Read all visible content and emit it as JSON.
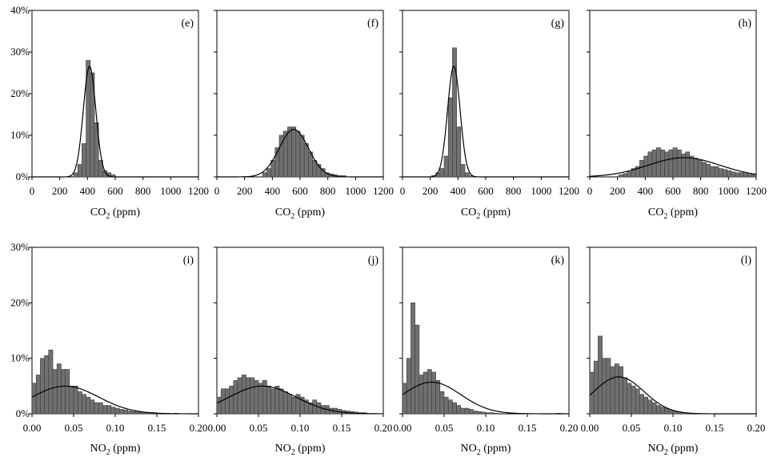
{
  "colors": {
    "bar_fill": "#707070",
    "bar_stroke": "#3a3a3a",
    "axis": "#000000",
    "curve": "#000000"
  },
  "chart_data": [
    {
      "type": "bar",
      "panel": "(e)",
      "xlabel_main": "CO",
      "xlabel_sub": "2",
      "xlabel_unit": " (ppm)",
      "xlim": [
        0,
        1200
      ],
      "ylim": [
        0,
        0.4
      ],
      "xticks": [
        "0",
        "200",
        "400",
        "600",
        "800",
        "1000",
        "1200"
      ],
      "yticks": [
        "0%",
        "10%",
        "20%",
        "30%",
        "40%"
      ],
      "bin_width": 30,
      "bins": [
        [
          300,
          0.01
        ],
        [
          330,
          0.03
        ],
        [
          360,
          0.08
        ],
        [
          390,
          0.28
        ],
        [
          420,
          0.25
        ],
        [
          450,
          0.13
        ],
        [
          480,
          0.04
        ],
        [
          510,
          0.015
        ],
        [
          540,
          0.01
        ],
        [
          570,
          0.005
        ]
      ],
      "fit": {
        "mean": 415,
        "sd": 45
      }
    },
    {
      "type": "bar",
      "panel": "(f)",
      "xlabel_main": "CO",
      "xlabel_sub": "2",
      "xlabel_unit": " (ppm)",
      "xlim": [
        0,
        1200
      ],
      "ylim": [
        0,
        0.4
      ],
      "xticks": [
        "0",
        "200",
        "400",
        "600",
        "800",
        "1000",
        "1200"
      ],
      "yticks": [
        "0%",
        "10%",
        "20%",
        "30%",
        "40%"
      ],
      "bin_width": 30,
      "bins": [
        [
          330,
          0.01
        ],
        [
          360,
          0.02
        ],
        [
          390,
          0.04
        ],
        [
          420,
          0.07
        ],
        [
          450,
          0.1
        ],
        [
          480,
          0.11
        ],
        [
          510,
          0.12
        ],
        [
          540,
          0.12
        ],
        [
          570,
          0.11
        ],
        [
          600,
          0.1
        ],
        [
          630,
          0.08
        ],
        [
          660,
          0.06
        ],
        [
          690,
          0.04
        ],
        [
          720,
          0.03
        ],
        [
          750,
          0.02
        ],
        [
          780,
          0.01
        ],
        [
          810,
          0.007
        ],
        [
          840,
          0.005
        ],
        [
          870,
          0.003
        ],
        [
          900,
          0.003
        ]
      ],
      "fit": {
        "mean": 555,
        "sd": 105
      }
    },
    {
      "type": "bar",
      "panel": "(g)",
      "xlabel_main": "CO",
      "xlabel_sub": "2",
      "xlabel_unit": " (ppm)",
      "xlim": [
        0,
        1200
      ],
      "ylim": [
        0,
        0.4
      ],
      "xticks": [
        "0",
        "200",
        "400",
        "600",
        "800",
        "1000",
        "1200"
      ],
      "yticks": [
        "0%",
        "10%",
        "20%",
        "30%",
        "40%"
      ],
      "bin_width": 30,
      "bins": [
        [
          210,
          0.003
        ],
        [
          240,
          0.01
        ],
        [
          270,
          0.02
        ],
        [
          300,
          0.05
        ],
        [
          330,
          0.19
        ],
        [
          360,
          0.31
        ],
        [
          390,
          0.12
        ],
        [
          420,
          0.03
        ],
        [
          450,
          0.01
        ],
        [
          480,
          0.003
        ]
      ],
      "fit": {
        "mean": 370,
        "sd": 45
      }
    },
    {
      "type": "bar",
      "panel": "(h)",
      "xlabel_main": "CO",
      "xlabel_sub": "2",
      "xlabel_unit": " (ppm)",
      "xlim": [
        0,
        1200
      ],
      "ylim": [
        0,
        0.4
      ],
      "xticks": [
        "0",
        "200",
        "400",
        "600",
        "800",
        "1000",
        "1200"
      ],
      "yticks": [
        "0%",
        "10%",
        "20%",
        "30%",
        "40%"
      ],
      "bin_width": 30,
      "bins": [
        [
          210,
          0.005
        ],
        [
          240,
          0.008
        ],
        [
          270,
          0.012
        ],
        [
          300,
          0.02
        ],
        [
          330,
          0.025
        ],
        [
          360,
          0.04
        ],
        [
          390,
          0.05
        ],
        [
          420,
          0.06
        ],
        [
          450,
          0.065
        ],
        [
          480,
          0.07
        ],
        [
          510,
          0.065
        ],
        [
          540,
          0.06
        ],
        [
          570,
          0.065
        ],
        [
          600,
          0.07
        ],
        [
          630,
          0.065
        ],
        [
          660,
          0.055
        ],
        [
          690,
          0.06
        ],
        [
          720,
          0.05
        ],
        [
          750,
          0.045
        ],
        [
          780,
          0.04
        ],
        [
          810,
          0.035
        ],
        [
          840,
          0.03
        ],
        [
          870,
          0.025
        ],
        [
          900,
          0.025
        ],
        [
          930,
          0.02
        ],
        [
          960,
          0.018
        ],
        [
          990,
          0.015
        ],
        [
          1020,
          0.012
        ],
        [
          1050,
          0.01
        ],
        [
          1080,
          0.01
        ],
        [
          1110,
          0.008
        ],
        [
          1140,
          0.006
        ],
        [
          1170,
          0.005
        ]
      ],
      "fit": {
        "mean": 680,
        "sd": 260
      }
    },
    {
      "type": "bar",
      "panel": "(i)",
      "xlabel_main": "NO",
      "xlabel_sub": "2",
      "xlabel_unit": " (ppm)",
      "xlim": [
        0,
        0.2
      ],
      "ylim": [
        0,
        0.3
      ],
      "xticks": [
        "0.00",
        "0.05",
        "0.10",
        "0.15",
        "0.20"
      ],
      "yticks": [
        "0%",
        "10%",
        "20%",
        "30%"
      ],
      "bin_width": 0.005,
      "bins": [
        [
          0.0,
          0.055
        ],
        [
          0.005,
          0.07
        ],
        [
          0.01,
          0.1
        ],
        [
          0.015,
          0.105
        ],
        [
          0.02,
          0.115
        ],
        [
          0.025,
          0.08
        ],
        [
          0.03,
          0.09
        ],
        [
          0.035,
          0.08
        ],
        [
          0.04,
          0.08
        ],
        [
          0.045,
          0.05
        ],
        [
          0.05,
          0.05
        ],
        [
          0.055,
          0.04
        ],
        [
          0.06,
          0.035
        ],
        [
          0.065,
          0.03
        ],
        [
          0.07,
          0.025
        ],
        [
          0.075,
          0.02
        ],
        [
          0.08,
          0.02
        ],
        [
          0.085,
          0.015
        ],
        [
          0.09,
          0.015
        ],
        [
          0.095,
          0.012
        ],
        [
          0.1,
          0.01
        ],
        [
          0.105,
          0.008
        ],
        [
          0.11,
          0.007
        ],
        [
          0.115,
          0.005
        ],
        [
          0.12,
          0.004
        ],
        [
          0.125,
          0.003
        ],
        [
          0.13,
          0.003
        ],
        [
          0.135,
          0.002
        ],
        [
          0.14,
          0.002
        ],
        [
          0.145,
          0.002
        ],
        [
          0.15,
          0.001
        ],
        [
          0.16,
          0.001
        ],
        [
          0.17,
          0.001
        ]
      ],
      "fit": {
        "mean": 0.04,
        "sd": 0.04
      }
    },
    {
      "type": "bar",
      "panel": "(j)",
      "xlabel_main": "NO",
      "xlabel_sub": "2",
      "xlabel_unit": " (ppm)",
      "xlim": [
        0,
        0.2
      ],
      "ylim": [
        0,
        0.3
      ],
      "xticks": [
        "0.00",
        "0.05",
        "0.10",
        "0.15",
        "0.20"
      ],
      "yticks": [
        "0%",
        "10%",
        "20%",
        "30%"
      ],
      "bin_width": 0.005,
      "bins": [
        [
          0.0,
          0.03
        ],
        [
          0.005,
          0.045
        ],
        [
          0.01,
          0.045
        ],
        [
          0.015,
          0.05
        ],
        [
          0.02,
          0.06
        ],
        [
          0.025,
          0.065
        ],
        [
          0.03,
          0.07
        ],
        [
          0.035,
          0.065
        ],
        [
          0.04,
          0.065
        ],
        [
          0.045,
          0.06
        ],
        [
          0.05,
          0.055
        ],
        [
          0.055,
          0.06
        ],
        [
          0.06,
          0.05
        ],
        [
          0.065,
          0.045
        ],
        [
          0.07,
          0.05
        ],
        [
          0.075,
          0.045
        ],
        [
          0.08,
          0.04
        ],
        [
          0.085,
          0.035
        ],
        [
          0.09,
          0.03
        ],
        [
          0.095,
          0.035
        ],
        [
          0.1,
          0.03
        ],
        [
          0.105,
          0.025
        ],
        [
          0.11,
          0.02
        ],
        [
          0.115,
          0.025
        ],
        [
          0.12,
          0.02
        ],
        [
          0.125,
          0.015
        ],
        [
          0.13,
          0.015
        ],
        [
          0.135,
          0.01
        ],
        [
          0.14,
          0.01
        ],
        [
          0.145,
          0.008
        ],
        [
          0.15,
          0.006
        ],
        [
          0.155,
          0.005
        ],
        [
          0.16,
          0.004
        ],
        [
          0.165,
          0.003
        ],
        [
          0.17,
          0.002
        ],
        [
          0.175,
          0.002
        ]
      ],
      "fit": {
        "mean": 0.055,
        "sd": 0.04
      }
    },
    {
      "type": "bar",
      "panel": "(k)",
      "xlabel_main": "NO",
      "xlabel_sub": "2",
      "xlabel_unit": " (ppm)",
      "xlim": [
        0,
        0.2
      ],
      "ylim": [
        0,
        0.3
      ],
      "xticks": [
        "0.00",
        "0.05",
        "0.10",
        "0.15",
        "0.20"
      ],
      "yticks": [
        "0%",
        "10%",
        "20%",
        "30%"
      ],
      "bin_width": 0.005,
      "bins": [
        [
          0.0,
          0.055
        ],
        [
          0.005,
          0.1
        ],
        [
          0.01,
          0.2
        ],
        [
          0.015,
          0.16
        ],
        [
          0.02,
          0.07
        ],
        [
          0.025,
          0.075
        ],
        [
          0.03,
          0.08
        ],
        [
          0.035,
          0.075
        ],
        [
          0.04,
          0.06
        ],
        [
          0.045,
          0.04
        ],
        [
          0.05,
          0.03
        ],
        [
          0.055,
          0.025
        ],
        [
          0.06,
          0.02
        ],
        [
          0.065,
          0.015
        ],
        [
          0.07,
          0.01
        ],
        [
          0.075,
          0.01
        ],
        [
          0.08,
          0.008
        ],
        [
          0.085,
          0.005
        ],
        [
          0.09,
          0.004
        ],
        [
          0.095,
          0.003
        ],
        [
          0.1,
          0.002
        ],
        [
          0.105,
          0.002
        ],
        [
          0.11,
          0.001
        ],
        [
          0.185,
          0.001
        ]
      ],
      "fit": {
        "mean": 0.035,
        "sd": 0.035
      }
    },
    {
      "type": "bar",
      "panel": "(l)",
      "xlabel_main": "NO",
      "xlabel_sub": "2",
      "xlabel_unit": " (ppm)",
      "xlim": [
        0,
        0.2
      ],
      "ylim": [
        0,
        0.3
      ],
      "xticks": [
        "0.00",
        "0.05",
        "0.10",
        "0.15",
        "0.20"
      ],
      "yticks": [
        "0%",
        "10%",
        "20%",
        "30%"
      ],
      "bin_width": 0.005,
      "bins": [
        [
          0.0,
          0.075
        ],
        [
          0.005,
          0.095
        ],
        [
          0.01,
          0.14
        ],
        [
          0.015,
          0.1
        ],
        [
          0.02,
          0.1
        ],
        [
          0.025,
          0.085
        ],
        [
          0.03,
          0.09
        ],
        [
          0.035,
          0.085
        ],
        [
          0.04,
          0.065
        ],
        [
          0.045,
          0.055
        ],
        [
          0.05,
          0.05
        ],
        [
          0.055,
          0.045
        ],
        [
          0.06,
          0.035
        ],
        [
          0.065,
          0.03
        ],
        [
          0.07,
          0.025
        ],
        [
          0.075,
          0.02
        ],
        [
          0.08,
          0.015
        ],
        [
          0.085,
          0.012
        ],
        [
          0.09,
          0.01
        ],
        [
          0.095,
          0.006
        ],
        [
          0.1,
          0.004
        ],
        [
          0.105,
          0.003
        ],
        [
          0.11,
          0.002
        ],
        [
          0.115,
          0.001
        ]
      ],
      "fit": {
        "mean": 0.035,
        "sd": 0.03
      }
    }
  ]
}
